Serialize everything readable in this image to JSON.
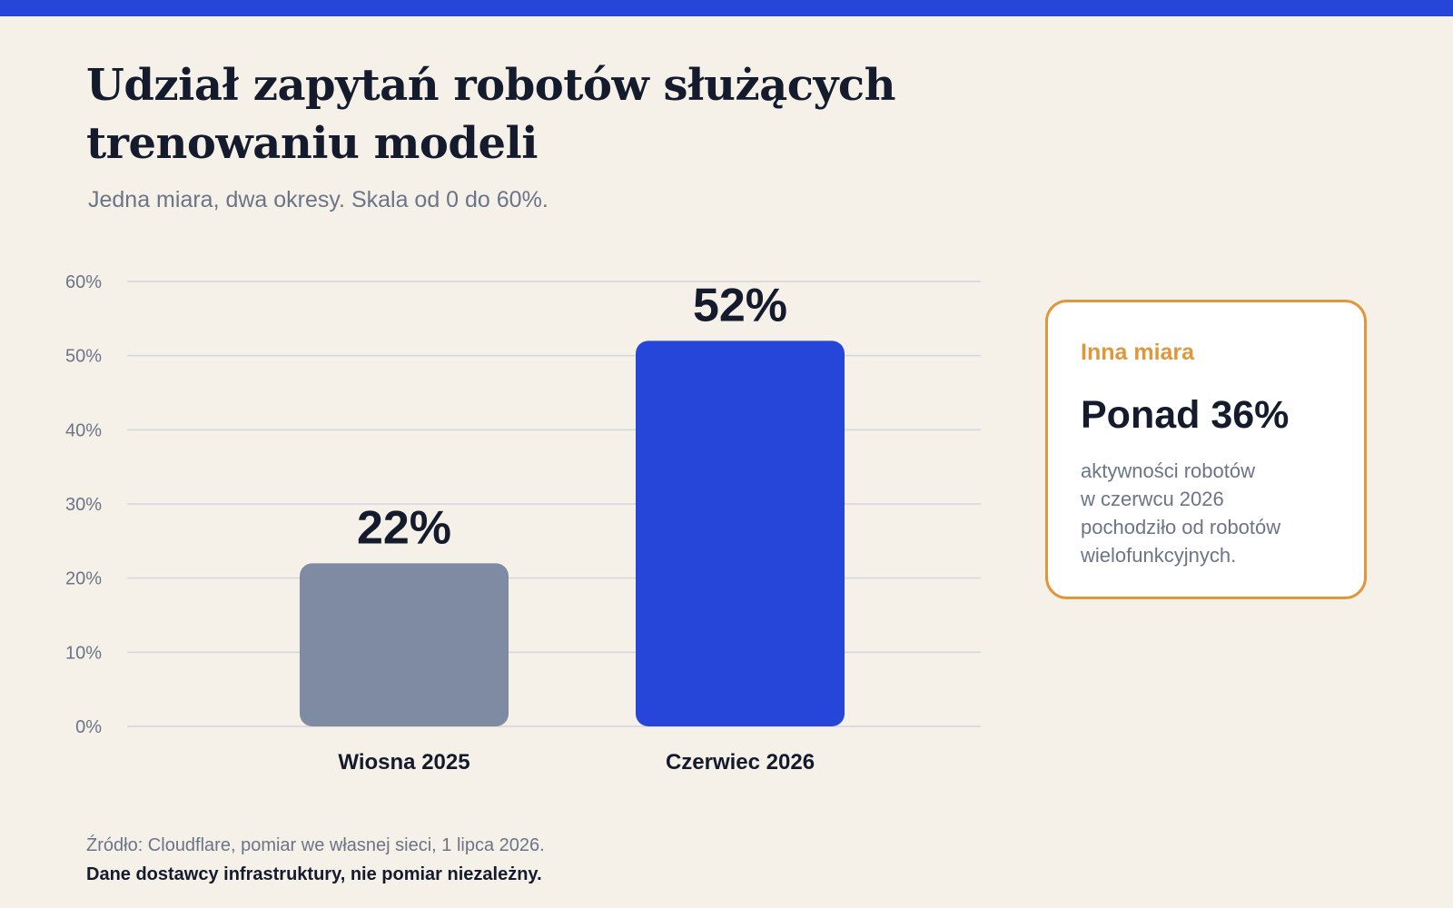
{
  "header": {
    "accent_color": "#2546d8"
  },
  "title": "Udział zapytań robotów służących trenowaniu modeli",
  "subtitle": "Jedna miara, dwa okresy. Skala od 0 do 60%.",
  "chart_data": {
    "type": "bar",
    "title": "",
    "xlabel": "",
    "ylabel": "",
    "categories": [
      "Wiosna 2025",
      "Czerwiec 2026"
    ],
    "values": [
      22,
      52
    ],
    "value_labels": [
      "22%",
      "52%"
    ],
    "bar_colors": [
      "#7f8aa3",
      "#2546d8"
    ],
    "ylim": [
      0,
      60
    ],
    "y_ticks": [
      0,
      10,
      20,
      30,
      40,
      50,
      60
    ],
    "y_tick_labels": [
      "0%",
      "10%",
      "20%",
      "30%",
      "40%",
      "50%",
      "60%"
    ],
    "grid": true,
    "legend": "none"
  },
  "callout": {
    "label": "Inna miara",
    "value": "Ponad 36%",
    "text": "aktywności robotów\nw czerwcu 2026\npochodziło od robotów\nwielofunkcyjnych.",
    "border_color": "#e0963a"
  },
  "footer": {
    "source": "Źródło: Cloudflare, pomiar we własnej sieci, 1 lipca 2026.",
    "disclaimer": "Dane dostawcy infrastruktury, nie pomiar niezależny."
  }
}
